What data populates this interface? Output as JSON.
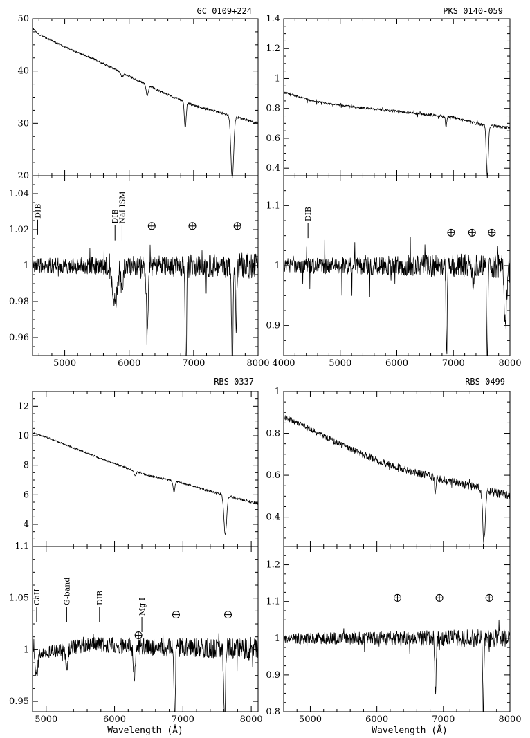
{
  "chart_data": [
    {
      "type": "line",
      "title": "GC 0109+224",
      "xlabel": "",
      "ylabel": "",
      "xlim": [
        4500,
        8000
      ],
      "ylim": [
        20,
        50
      ],
      "xticks": [
        5000,
        6000,
        7000,
        8000
      ],
      "xtick_labels": [],
      "yticks": [
        20,
        30,
        40,
        50
      ],
      "continuum": [
        [
          4500,
          48.2
        ],
        [
          4600,
          47.0
        ],
        [
          5000,
          44.6
        ],
        [
          5500,
          42.0
        ],
        [
          6000,
          39.0
        ],
        [
          6500,
          36.0
        ],
        [
          7000,
          33.4
        ],
        [
          7500,
          31.8
        ],
        [
          8000,
          30.0
        ]
      ],
      "features": [
        {
          "x": 5890,
          "depth": 0.8,
          "width": 25
        },
        {
          "x": 6280,
          "depth": 2.0,
          "width": 25
        },
        {
          "x": 6870,
          "depth": 5.0,
          "width": 20
        },
        {
          "x": 7600,
          "depth": 12.0,
          "width": 30
        }
      ],
      "noise": 0.15,
      "spikes": 0.05
    },
    {
      "type": "line",
      "title": "",
      "xlabel": "",
      "ylabel": "",
      "xlim": [
        4500,
        8000
      ],
      "ylim": [
        0.95,
        1.05
      ],
      "xticks": [
        5000,
        6000,
        7000,
        8000
      ],
      "xtick_labels": [
        "5000",
        "6000",
        "7000",
        "8000"
      ],
      "yticks": [
        0.96,
        0.98,
        1.0,
        1.02,
        1.04
      ],
      "ytick_labels": [
        "0.96",
        "0.98",
        "1",
        "1.02",
        "1.04"
      ],
      "continuum": [
        [
          4500,
          1.0
        ],
        [
          8000,
          1.0
        ]
      ],
      "features": [
        {
          "x": 5780,
          "depth": 0.02,
          "width": 60
        },
        {
          "x": 5890,
          "depth": 0.012,
          "width": 25
        },
        {
          "x": 6280,
          "depth": 0.035,
          "width": 20
        },
        {
          "x": 6880,
          "depth": 0.06,
          "width": 15
        },
        {
          "x": 7600,
          "depth": 0.06,
          "width": 15
        },
        {
          "x": 7660,
          "depth": 0.04,
          "width": 12
        }
      ],
      "noise": 0.004,
      "spikes": 0.01,
      "annotations": [
        {
          "label": "DIB",
          "x": 4580,
          "y": 1.017
        },
        {
          "label": "DIB",
          "x": 5780,
          "y": 1.014
        },
        {
          "label": "NaI ISM",
          "x": 5890,
          "y": 1.014
        }
      ],
      "telluric_marks": [
        [
          6350,
          1.022
        ],
        [
          6980,
          1.022
        ],
        [
          7680,
          1.022
        ]
      ]
    },
    {
      "type": "line",
      "title": "PKS 0140-059",
      "xlabel": "",
      "ylabel": "",
      "xlim": [
        4000,
        8000
      ],
      "ylim": [
        0.35,
        1.4
      ],
      "xticks": [
        4000,
        5000,
        6000,
        7000,
        8000
      ],
      "xtick_labels": [],
      "yticks": [
        0.4,
        0.6,
        0.8,
        1.0,
        1.2,
        1.4
      ],
      "ytick_labels": [
        "0.4",
        "0.6",
        "0.8",
        "1",
        "1.2",
        "1.4"
      ],
      "continuum": [
        [
          4000,
          0.91
        ],
        [
          4500,
          0.85
        ],
        [
          5000,
          0.82
        ],
        [
          6000,
          0.78
        ],
        [
          7000,
          0.74
        ],
        [
          7500,
          0.69
        ],
        [
          8000,
          0.67
        ]
      ],
      "features": [
        {
          "x": 6870,
          "depth": 0.08,
          "width": 15
        },
        {
          "x": 7600,
          "depth": 0.35,
          "width": 25
        }
      ],
      "noise": 0.006,
      "spikes": 0.02
    },
    {
      "type": "line",
      "title": "",
      "xlabel": "",
      "ylabel": "",
      "xlim": [
        4000,
        8000
      ],
      "ylim": [
        0.85,
        1.15
      ],
      "xticks": [
        4000,
        5000,
        6000,
        7000,
        8000
      ],
      "xtick_labels": [
        "4000",
        "5000",
        "6000",
        "7000",
        "8000"
      ],
      "yticks": [
        0.9,
        1.0,
        1.1
      ],
      "ytick_labels": [
        "0.9",
        "1",
        "1.1"
      ],
      "continuum": [
        [
          4000,
          1.0
        ],
        [
          8000,
          1.0
        ]
      ],
      "features": [
        {
          "x": 6880,
          "depth": 0.15,
          "width": 15
        },
        {
          "x": 7350,
          "depth": 0.04,
          "width": 20
        },
        {
          "x": 7600,
          "depth": 0.18,
          "width": 15
        },
        {
          "x": 7920,
          "depth": 0.1,
          "width": 30
        }
      ],
      "noise": 0.012,
      "spikes": 0.04,
      "annotations": [
        {
          "label": "DIB",
          "x": 4430,
          "y": 1.046
        }
      ],
      "telluric_marks": [
        [
          6960,
          1.055
        ],
        [
          7330,
          1.055
        ],
        [
          7680,
          1.055
        ]
      ]
    },
    {
      "type": "line",
      "title": "RBS 0337",
      "xlabel": "",
      "ylabel": "",
      "xlim": [
        4800,
        8100
      ],
      "ylim": [
        2.5,
        13
      ],
      "xticks": [
        5000,
        6000,
        7000,
        8000
      ],
      "xtick_labels": [],
      "yticks": [
        4,
        6,
        8,
        10,
        12
      ],
      "ytick_labels": [
        "4",
        "6",
        "8",
        "10",
        "12"
      ],
      "continuum": [
        [
          4800,
          10.2
        ],
        [
          5000,
          9.9
        ],
        [
          5500,
          9.0
        ],
        [
          6000,
          8.1
        ],
        [
          6500,
          7.3
        ],
        [
          7000,
          6.8
        ],
        [
          7500,
          6.1
        ],
        [
          8100,
          5.4
        ]
      ],
      "features": [
        {
          "x": 6300,
          "depth": 0.3,
          "width": 25
        },
        {
          "x": 6870,
          "depth": 0.8,
          "width": 18
        },
        {
          "x": 7620,
          "depth": 2.7,
          "width": 28
        }
      ],
      "noise": 0.05,
      "spikes": 0.05
    },
    {
      "type": "line",
      "title": "",
      "xlabel": "Wavelength (Å)",
      "ylabel": "",
      "xlim": [
        4800,
        8100
      ],
      "ylim": [
        0.94,
        1.1
      ],
      "xticks": [
        5000,
        6000,
        7000,
        8000
      ],
      "xtick_labels": [
        "5000",
        "6000",
        "7000",
        "8000"
      ],
      "yticks": [
        0.95,
        1.0,
        1.05,
        1.1
      ],
      "ytick_labels": [
        "0.95",
        "1",
        "1.05",
        "1.1"
      ],
      "continuum": [
        [
          4800,
          0.995
        ],
        [
          5600,
          1.005
        ],
        [
          8100,
          1.0
        ]
      ],
      "features": [
        {
          "x": 4860,
          "depth": 0.02,
          "width": 25
        },
        {
          "x": 5300,
          "depth": 0.018,
          "width": 25
        },
        {
          "x": 6290,
          "depth": 0.03,
          "width": 20
        },
        {
          "x": 6880,
          "depth": 0.07,
          "width": 14
        },
        {
          "x": 7610,
          "depth": 0.07,
          "width": 18
        }
      ],
      "noise": 0.006,
      "spikes": 0.015,
      "annotations": [
        {
          "label": "CaII",
          "x": 4860,
          "y": 1.027
        },
        {
          "label": "G-band",
          "x": 5300,
          "y": 1.027
        },
        {
          "label": "DIB",
          "x": 5780,
          "y": 1.027
        },
        {
          "label": "Mg I",
          "x": 6400,
          "y": 1.017
        }
      ],
      "telluric_marks": [
        [
          6350,
          1.014
        ],
        [
          6900,
          1.034
        ],
        [
          7660,
          1.034
        ]
      ]
    },
    {
      "type": "line",
      "title": "RBS-0499",
      "xlabel": "",
      "ylabel": "",
      "xlim": [
        4600,
        8000
      ],
      "ylim": [
        0.26,
        1.0
      ],
      "xticks": [
        5000,
        6000,
        7000,
        8000
      ],
      "xtick_labels": [],
      "yticks": [
        0.4,
        0.6,
        0.8,
        1.0
      ],
      "ytick_labels": [
        "0.4",
        "0.6",
        "0.8",
        "1"
      ],
      "continuum": [
        [
          4600,
          0.88
        ],
        [
          5000,
          0.82
        ],
        [
          5500,
          0.74
        ],
        [
          6000,
          0.67
        ],
        [
          6500,
          0.62
        ],
        [
          7000,
          0.58
        ],
        [
          7500,
          0.54
        ],
        [
          8000,
          0.5
        ]
      ],
      "features": [
        {
          "x": 6880,
          "depth": 0.08,
          "width": 15
        },
        {
          "x": 7610,
          "depth": 0.25,
          "width": 25
        }
      ],
      "noise": 0.012,
      "spikes": 0.02
    },
    {
      "type": "line",
      "title": "",
      "xlabel": "Wavelength (Å)",
      "ylabel": "",
      "xlim": [
        4600,
        8000
      ],
      "ylim": [
        0.8,
        1.25
      ],
      "xticks": [
        5000,
        6000,
        7000,
        8000
      ],
      "xtick_labels": [
        "5000",
        "6000",
        "7000",
        "8000"
      ],
      "yticks": [
        0.8,
        0.9,
        1.0,
        1.1,
        1.2
      ],
      "ytick_labels": [
        "0.8",
        "0.9",
        "1",
        "1.1",
        "1.2"
      ],
      "continuum": [
        [
          4600,
          1.0
        ],
        [
          8000,
          1.0
        ]
      ],
      "features": [
        {
          "x": 6880,
          "depth": 0.15,
          "width": 14
        },
        {
          "x": 7600,
          "depth": 0.2,
          "width": 14
        }
      ],
      "noise": 0.014,
      "spikes": 0.04,
      "telluric_marks": [
        [
          6310,
          1.11
        ],
        [
          6940,
          1.11
        ],
        [
          7690,
          1.11
        ]
      ]
    }
  ]
}
